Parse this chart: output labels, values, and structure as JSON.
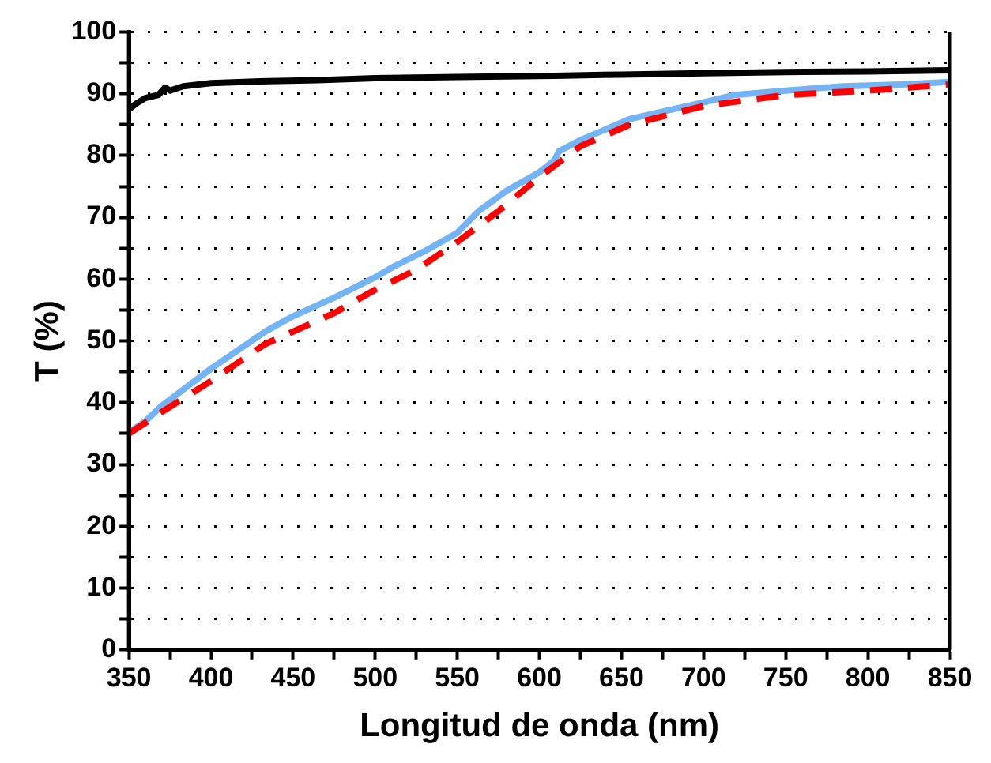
{
  "chart_data": {
    "type": "line",
    "xlabel": "Longitud de onda (nm)",
    "ylabel": "T (%)",
    "xlim": [
      350,
      850
    ],
    "xticks": [
      350,
      {
        "value": 375,
        "label": null
      },
      400,
      {
        "value": 425,
        "label": null
      },
      450,
      {
        "value": 475,
        "label": null
      },
      500,
      {
        "value": 525,
        "label": null
      },
      550,
      {
        "value": 575,
        "label": null
      },
      600,
      {
        "value": 625,
        "label": null
      },
      650,
      {
        "value": 675,
        "label": null
      },
      700,
      {
        "value": 725,
        "label": null
      },
      750,
      {
        "value": 775,
        "label": null
      },
      800,
      {
        "value": 825,
        "label": null
      },
      850
    ],
    "ylim": [
      0,
      100
    ],
    "yticks": [
      0,
      {
        "value": 5,
        "label": null
      },
      10,
      {
        "value": 15,
        "label": null
      },
      20,
      {
        "value": 25,
        "label": null
      },
      30,
      {
        "value": 35,
        "label": null
      },
      40,
      {
        "value": 45,
        "label": null
      },
      50,
      {
        "value": 55,
        "label": null
      },
      60,
      {
        "value": 65,
        "label": null
      },
      70,
      {
        "value": 75,
        "label": null
      },
      80,
      {
        "value": 85,
        "label": null
      },
      90,
      {
        "value": 95,
        "label": null
      },
      100
    ],
    "grid": "y",
    "legend": false,
    "marker": "none",
    "series": [
      {
        "color": "#000000",
        "line_style": "solid",
        "x": [
          350,
          355,
          360,
          368,
          372,
          375,
          383,
          400,
          430,
          465,
          500,
          550,
          609,
          650,
          700,
          750,
          800,
          850
        ],
        "values": [
          87.5,
          88.5,
          89.3,
          89.8,
          91,
          90.5,
          91.2,
          91.7,
          92,
          92.2,
          92.5,
          92.7,
          92.9,
          93.1,
          93.3,
          93.5,
          93.6,
          93.8
        ]
      },
      {
        "color": "#ff0000",
        "line_style": "dashed",
        "x": [
          350,
          370,
          400,
          433,
          450,
          475,
          500,
          525,
          550,
          575,
          600,
          625,
          655,
          700,
          750,
          800,
          850
        ],
        "values": [
          35,
          38.5,
          43.5,
          49.5,
          51.5,
          54.5,
          58.3,
          61.5,
          66,
          71,
          76.5,
          81.5,
          85,
          88,
          89.8,
          90.5,
          91.5
        ]
      },
      {
        "color": "#74b4f4",
        "line_style": "solid",
        "x": [
          350,
          360,
          370,
          400,
          433,
          450,
          475,
          500,
          511,
          530,
          550,
          563,
          580,
          600,
          609,
          612,
          625,
          655,
          700,
          719,
          750,
          785,
          820,
          850
        ],
        "values": [
          35.2,
          37,
          39.5,
          45.5,
          51.5,
          54,
          57,
          60.3,
          62,
          64.5,
          67.5,
          71,
          74.3,
          77.3,
          79.2,
          80.7,
          82.5,
          85.9,
          88.6,
          89.8,
          90.5,
          91.2,
          91.5,
          91.9
        ]
      }
    ]
  }
}
